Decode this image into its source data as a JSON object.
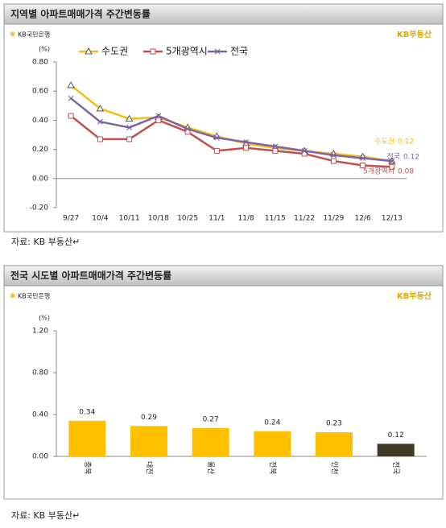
{
  "chart_data": [
    {
      "type": "line",
      "title": "지역별 아파트매매가격 주간변동률",
      "logo": "KB국민은행",
      "brand": "KB부동산",
      "unit": "(%)",
      "categories": [
        "9/27",
        "10/4",
        "10/11",
        "10/18",
        "10/25",
        "11/1",
        "11/8",
        "11/15",
        "11/22",
        "11/29",
        "12/6",
        "12/13"
      ],
      "series": [
        {
          "name": "수도권",
          "color": "#f5be0f",
          "marker": "triangle",
          "values": [
            0.64,
            0.48,
            0.41,
            0.42,
            0.35,
            0.29,
            0.24,
            0.21,
            0.19,
            0.17,
            0.15,
            0.12
          ]
        },
        {
          "name": "5개광역시",
          "color": "#c0504d",
          "marker": "square",
          "values": [
            0.43,
            0.27,
            0.27,
            0.4,
            0.32,
            0.19,
            0.21,
            0.19,
            0.17,
            0.12,
            0.09,
            0.08
          ]
        },
        {
          "name": "전국",
          "color": "#8064a2",
          "marker": "x",
          "values": [
            0.55,
            0.39,
            0.35,
            0.43,
            0.34,
            0.28,
            0.25,
            0.22,
            0.19,
            0.16,
            0.14,
            0.12
          ]
        }
      ],
      "ylim": [
        -0.2,
        0.8
      ],
      "yticks": [
        {
          "value": -0.2,
          "label": "-0.20"
        },
        {
          "value": 0,
          "label": "0.00"
        },
        {
          "value": 0.2,
          "label": "0.20"
        },
        {
          "value": 0.4,
          "label": "0.40"
        },
        {
          "value": 0.6,
          "label": "0.60"
        },
        {
          "value": 0.8,
          "label": "0.80"
        }
      ],
      "legend": "top",
      "source": "자료: KB 부동산↵"
    },
    {
      "type": "bar",
      "title": "전국 시도별 아파트매매가격 주간변동률",
      "logo": "KB국민은행",
      "brand": "KB부동산",
      "unit": "(%)",
      "categories": [
        "충북",
        "대전",
        "울산",
        "전북",
        "인천",
        "전국"
      ],
      "values": [
        0.34,
        0.29,
        0.27,
        0.24,
        0.23,
        0.12
      ],
      "colors": [
        "#ffc000",
        "#ffc000",
        "#ffc000",
        "#ffc000",
        "#ffc000",
        "#403a24"
      ],
      "ylim": [
        0,
        1.2
      ],
      "yticks": [
        {
          "value": 0,
          "label": "0.00"
        },
        {
          "value": 0.4,
          "label": "0.40"
        },
        {
          "value": 0.8,
          "label": "0.80"
        },
        {
          "value": 1.2,
          "label": "1.20"
        }
      ],
      "source": "자료: KB 부동산↵"
    }
  ]
}
